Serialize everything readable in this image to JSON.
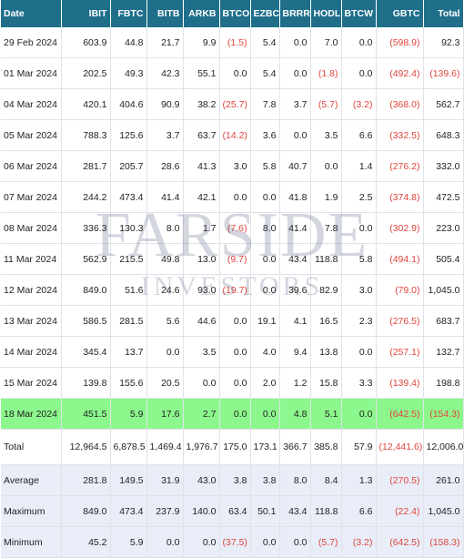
{
  "columns": [
    "Date",
    "IBIT",
    "FBTC",
    "BITB",
    "ARKB",
    "BTCO",
    "EZBC",
    "BRRR",
    "HODL",
    "BTCW",
    "GBTC",
    "Total"
  ],
  "rows": [
    {
      "cells": [
        "29 Feb 2024",
        "603.9",
        "44.8",
        "21.7",
        "9.9",
        "(1.5)",
        "5.4",
        "0.0",
        "7.0",
        "0.0",
        "(598.9)",
        "92.3"
      ]
    },
    {
      "cells": [
        "01 Mar 2024",
        "202.5",
        "49.3",
        "42.3",
        "55.1",
        "0.0",
        "5.4",
        "0.0",
        "(1.8)",
        "0.0",
        "(492.4)",
        "(139.6)"
      ]
    },
    {
      "cells": [
        "04 Mar 2024",
        "420.1",
        "404.6",
        "90.9",
        "38.2",
        "(25.7)",
        "7.8",
        "3.7",
        "(5.7)",
        "(3.2)",
        "(368.0)",
        "562.7"
      ]
    },
    {
      "cells": [
        "05 Mar 2024",
        "788.3",
        "125.6",
        "3.7",
        "63.7",
        "(14.2)",
        "3.6",
        "0.0",
        "3.5",
        "6.6",
        "(332.5)",
        "648.3"
      ]
    },
    {
      "cells": [
        "06 Mar 2024",
        "281.7",
        "205.7",
        "28.6",
        "41.3",
        "3.0",
        "5.8",
        "40.7",
        "0.0",
        "1.4",
        "(276.2)",
        "332.0"
      ]
    },
    {
      "cells": [
        "07 Mar 2024",
        "244.2",
        "473.4",
        "41.4",
        "42.1",
        "0.0",
        "0.0",
        "41.8",
        "1.9",
        "2.5",
        "(374.8)",
        "472.5"
      ]
    },
    {
      "cells": [
        "08 Mar 2024",
        "336.3",
        "130.3",
        "8.0",
        "1.7",
        "(7.6)",
        "8.0",
        "41.4",
        "7.8",
        "0.0",
        "(302.9)",
        "223.0"
      ]
    },
    {
      "cells": [
        "11 Mar 2024",
        "562.9",
        "215.5",
        "49.8",
        "13.0",
        "(9.7)",
        "0.0",
        "43.4",
        "118.8",
        "5.8",
        "(494.1)",
        "505.4"
      ]
    },
    {
      "cells": [
        "12 Mar 2024",
        "849.0",
        "51.6",
        "24.6",
        "93.0",
        "(19.7)",
        "0.0",
        "39.6",
        "82.9",
        "3.0",
        "(79.0)",
        "1,045.0"
      ]
    },
    {
      "cells": [
        "13 Mar 2024",
        "586.5",
        "281.5",
        "5.6",
        "44.6",
        "0.0",
        "19.1",
        "4.1",
        "16.5",
        "2.3",
        "(276.5)",
        "683.7"
      ]
    },
    {
      "cells": [
        "14 Mar 2024",
        "345.4",
        "13.7",
        "0.0",
        "3.5",
        "0.0",
        "4.0",
        "9.4",
        "13.8",
        "0.0",
        "(257.1)",
        "132.7"
      ]
    },
    {
      "cells": [
        "15 Mar 2024",
        "139.8",
        "155.6",
        "20.5",
        "0.0",
        "0.0",
        "2.0",
        "1.2",
        "15.8",
        "3.3",
        "(139.4)",
        "198.8"
      ]
    },
    {
      "cells": [
        "18 Mar 2024",
        "451.5",
        "5.9",
        "17.6",
        "2.7",
        "0.0",
        "0.0",
        "4.8",
        "5.1",
        "0.0",
        "(642.5)",
        "(154.3)"
      ],
      "highlight": true
    },
    {
      "cells": [
        "Total",
        "12,964.5",
        "6,878.5",
        "1,469.4",
        "1,976.7",
        "175.0",
        "173.1",
        "366.7",
        "385.8",
        "57.9",
        "(12,441.6)",
        "12,006.0"
      ],
      "kind": "total"
    },
    {
      "cells": [
        "Average",
        "281.8",
        "149.5",
        "31.9",
        "43.0",
        "3.8",
        "3.8",
        "8.0",
        "8.4",
        "1.3",
        "(270.5)",
        "261.0"
      ],
      "kind": "stat"
    },
    {
      "cells": [
        "Maximum",
        "849.0",
        "473.4",
        "237.9",
        "140.0",
        "63.4",
        "50.1",
        "43.4",
        "118.8",
        "6.6",
        "(22.4)",
        "1,045.0"
      ],
      "kind": "stat"
    },
    {
      "cells": [
        "Minimum",
        "45.2",
        "5.9",
        "0.0",
        "0.0",
        "(37.5)",
        "0.0",
        "0.0",
        "(5.7)",
        "(3.2)",
        "(642.5)",
        "(158.3)"
      ],
      "kind": "stat"
    }
  ],
  "watermark": {
    "line1": "FARSIDE",
    "line2": "INVESTORS"
  },
  "colors": {
    "header_bg": "#1f6f8b",
    "highlight_row": "#8cf78c",
    "stat_row": "#e8edf8",
    "negative": "#e0443c"
  }
}
